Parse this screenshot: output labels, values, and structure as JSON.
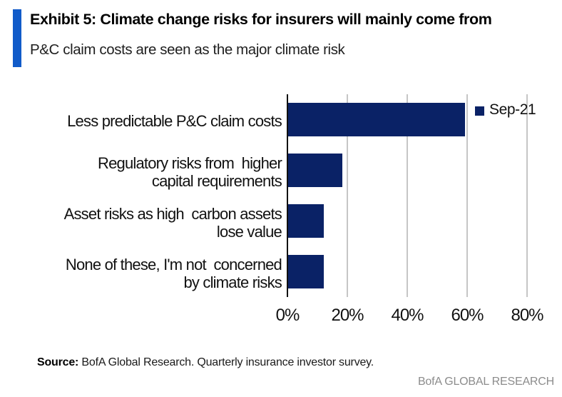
{
  "header": {
    "exhibit_title": "Exhibit 5: Climate change risks for insurers will mainly come from",
    "subtitle": "P&C claim costs are seen as the major climate risk",
    "accent_color": "#115BC9"
  },
  "chart_data": {
    "type": "bar",
    "orientation": "horizontal",
    "title": "Exhibit 5: Climate change risks for insurers will mainly come from",
    "subtitle": "P&C claim costs are seen as the major climate risk",
    "categories": [
      "Less predictable P&C claim costs",
      "Regulatory risks from higher capital requirements",
      "Asset risks as high carbon assets lose value",
      "None of these, I'm not concerned by climate risks"
    ],
    "label_lines": [
      [
        "Less predictable P&C claim costs"
      ],
      [
        "Regulatory risks from  higher",
        "capital requirements"
      ],
      [
        "Asset risks as high  carbon assets",
        "lose value"
      ],
      [
        "None of these, I'm not  concerned",
        "by climate risks"
      ]
    ],
    "series": [
      {
        "name": "Sep-21",
        "values": [
          59,
          18,
          12,
          12
        ],
        "color": "#0A2266"
      }
    ],
    "unit": "%",
    "xlabel": "",
    "ylabel": "",
    "xlim": [
      0,
      85
    ],
    "xticks": [
      0,
      20,
      40,
      60,
      80
    ],
    "xtick_labels": [
      "0%",
      "20%",
      "40%",
      "60%",
      "80%"
    ],
    "grid": "vertical",
    "gridline_color": "#C6C6C6",
    "legend": {
      "position": "top-right",
      "entries": [
        {
          "label": "Sep-21",
          "color": "#0A2266"
        }
      ]
    }
  },
  "footer": {
    "source_label": "Source:",
    "source_text": " BofA Global Research. Quarterly insurance investor survey.",
    "brand": "BofA GLOBAL RESEARCH"
  }
}
